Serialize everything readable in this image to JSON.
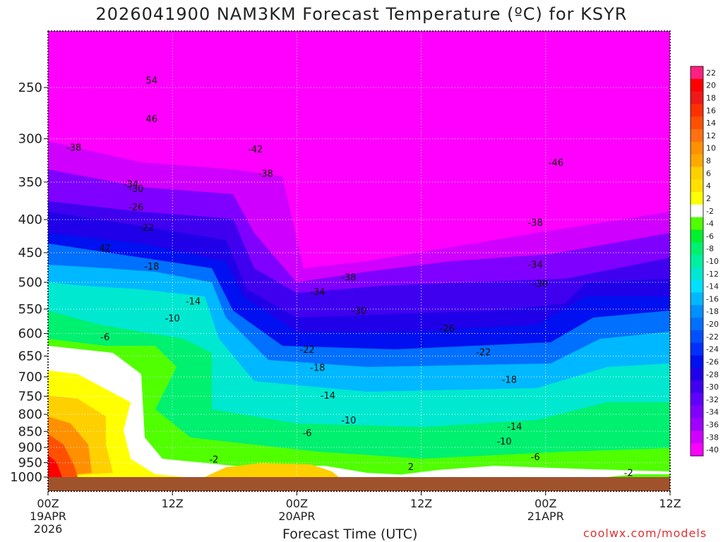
{
  "title": "2026041900 NAM3KM Forecast Temperature (ºC) for KSYR",
  "credit": "coolwx.com/models",
  "chart_data": {
    "type": "heatmap",
    "title": "2026041900 NAM3KM Forecast Temperature (ºC) for KSYR",
    "xlabel": "Forecast Time (UTC)",
    "ylabel": "",
    "x_axis": {
      "range_hours": [
        0,
        60
      ],
      "ticks": [
        {
          "hour": 0,
          "label": "00Z",
          "sub1": "19APR",
          "sub2": "2026"
        },
        {
          "hour": 12,
          "label": "12Z",
          "sub1": "",
          "sub2": ""
        },
        {
          "hour": 24,
          "label": "00Z",
          "sub1": "20APR",
          "sub2": ""
        },
        {
          "hour": 36,
          "label": "12Z",
          "sub1": "",
          "sub2": ""
        },
        {
          "hour": 48,
          "label": "00Z",
          "sub1": "21APR",
          "sub2": ""
        },
        {
          "hour": 60,
          "label": "12Z",
          "sub1": "",
          "sub2": ""
        }
      ]
    },
    "y_axis": {
      "units": "hPa",
      "range": [
        1000,
        200
      ],
      "ticks": [
        250,
        300,
        350,
        400,
        450,
        500,
        550,
        600,
        650,
        700,
        750,
        800,
        850,
        900,
        950,
        1000
      ]
    },
    "colorbar": {
      "units": "ºC",
      "labels": [
        "22",
        "20",
        "18",
        "16",
        "14",
        "12",
        "10",
        "8",
        "6",
        "4",
        "2",
        "-2",
        "-4",
        "-6",
        "-8",
        "-10",
        "-12",
        "-14",
        "-16",
        "-18",
        "-20",
        "-22",
        "-24",
        "-26",
        "-28",
        "-30",
        "-32",
        "-34",
        "-36",
        "-38",
        "-40"
      ],
      "colors": [
        "#ff2080",
        "#ff0000",
        "#f01818",
        "#ff3000",
        "#ff5000",
        "#ff7010",
        "#ff9000",
        "#ffa800",
        "#ffd000",
        "#ffe000",
        "#ffff00",
        "#ffffff",
        "#50ff00",
        "#00f030",
        "#00f070",
        "#00f0a0",
        "#00e8d0",
        "#00e0ff",
        "#00b8ff",
        "#0090ff",
        "#0070ff",
        "#0050ff",
        "#0030ff",
        "#0010f0",
        "#2000e8",
        "#4000f0",
        "#6000ff",
        "#8000ff",
        "#a000ff",
        "#d000ff",
        "#ff00ff"
      ]
    },
    "grid": true,
    "contour_labels": [
      {
        "t": 10.0,
        "p": 244,
        "v": "54"
      },
      {
        "t": 10.0,
        "p": 280,
        "v": "46"
      },
      {
        "t": 2.5,
        "p": 310,
        "v": "-38"
      },
      {
        "t": 20.0,
        "p": 312,
        "v": "-42"
      },
      {
        "t": 21.0,
        "p": 340,
        "v": "-38"
      },
      {
        "t": 8.0,
        "p": 353,
        "v": "-34"
      },
      {
        "t": 49.0,
        "p": 327,
        "v": "-46"
      },
      {
        "t": 8.5,
        "p": 359,
        "v": "-30"
      },
      {
        "t": 8.5,
        "p": 383,
        "v": "-26"
      },
      {
        "t": 9.5,
        "p": 412,
        "v": "-22"
      },
      {
        "t": 5.5,
        "p": 443,
        "v": "42"
      },
      {
        "t": 47.0,
        "p": 405,
        "v": "-38"
      },
      {
        "t": 10.0,
        "p": 473,
        "v": "-18"
      },
      {
        "t": 47.0,
        "p": 470,
        "v": "-34"
      },
      {
        "t": 29.0,
        "p": 492,
        "v": "-38"
      },
      {
        "t": 47.5,
        "p": 503,
        "v": "-30"
      },
      {
        "t": 26.0,
        "p": 518,
        "v": "-34"
      },
      {
        "t": 14.0,
        "p": 536,
        "v": "-14"
      },
      {
        "t": 30.0,
        "p": 554,
        "v": "-30"
      },
      {
        "t": 12.0,
        "p": 569,
        "v": "-10"
      },
      {
        "t": 38.5,
        "p": 590,
        "v": "-26"
      },
      {
        "t": 5.5,
        "p": 608,
        "v": "-6"
      },
      {
        "t": 25.0,
        "p": 636,
        "v": "-22"
      },
      {
        "t": 42.0,
        "p": 642,
        "v": "-22"
      },
      {
        "t": 26.0,
        "p": 678,
        "v": "-18"
      },
      {
        "t": 44.5,
        "p": 708,
        "v": "-18"
      },
      {
        "t": 27.0,
        "p": 749,
        "v": "-14"
      },
      {
        "t": 29.0,
        "p": 818,
        "v": "-10"
      },
      {
        "t": 45.0,
        "p": 837,
        "v": "-14"
      },
      {
        "t": 25.0,
        "p": 856,
        "v": "-6"
      },
      {
        "t": 44.0,
        "p": 882,
        "v": "-10"
      },
      {
        "t": 16.0,
        "p": 940,
        "v": "-2"
      },
      {
        "t": 35.0,
        "p": 966,
        "v": "2"
      },
      {
        "t": 47.0,
        "p": 932,
        "v": "-6"
      },
      {
        "t": 56.0,
        "p": 986,
        "v": "-2"
      }
    ]
  }
}
